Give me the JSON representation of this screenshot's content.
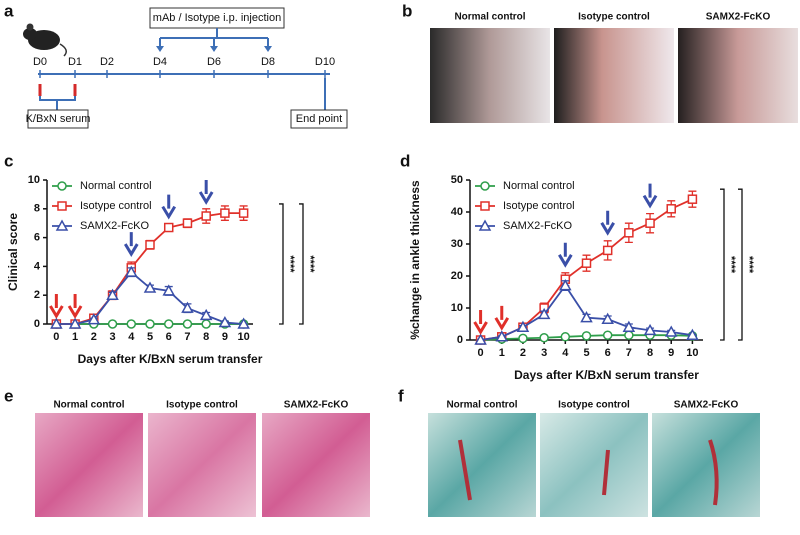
{
  "panel_labels": [
    "a",
    "b",
    "c",
    "d",
    "e",
    "f"
  ],
  "timeline": {
    "days": [
      "D0",
      "D1",
      "D2",
      "D4",
      "D6",
      "D8",
      "D10"
    ],
    "injection": "mAb / Isotype i.p. injection",
    "serum": "K/BxN serum",
    "end": "End point"
  },
  "photos_b": [
    "Normal control",
    "Isotype control",
    "SAMX2-FcKO"
  ],
  "histology_e": [
    "Normal control",
    "Isotype control",
    "SAMX2-FcKO"
  ],
  "histology_f": [
    "Normal control",
    "Isotype control",
    "SAMX2-FcKO"
  ],
  "chart_data": [
    {
      "type": "line",
      "x_label": "Days after K/BxN serum transfer",
      "y_label": "Clinical score",
      "x": [
        0,
        1,
        2,
        3,
        4,
        5,
        6,
        7,
        8,
        9,
        10
      ],
      "xlim": [
        -0.5,
        10.5
      ],
      "xticks": [
        0,
        1,
        2,
        3,
        4,
        5,
        6,
        7,
        8,
        9,
        10
      ],
      "ylim": [
        0,
        10
      ],
      "yticks": [
        0,
        2,
        4,
        6,
        8,
        10
      ],
      "series": [
        {
          "name": "Normal control",
          "color": "#2e9e4a",
          "marker": "circle",
          "values": [
            0,
            0,
            0,
            0,
            0,
            0,
            0,
            0,
            0,
            0,
            0
          ],
          "errors": [
            0,
            0,
            0,
            0,
            0,
            0,
            0,
            0,
            0,
            0,
            0
          ]
        },
        {
          "name": "Isotype control",
          "color": "#e0302a",
          "marker": "square",
          "values": [
            0,
            0,
            0.4,
            2,
            3.9,
            5.5,
            6.7,
            7,
            7.5,
            7.7,
            7.7
          ],
          "errors": [
            0,
            0,
            0.2,
            0.3,
            0.4,
            0.3,
            0.2,
            0.3,
            0.5,
            0.5,
            0.5
          ]
        },
        {
          "name": "SAMX2-FcKO",
          "color": "#3a4fa8",
          "marker": "triangle",
          "values": [
            0,
            0,
            0.3,
            2,
            3.6,
            2.5,
            2.3,
            1.1,
            0.6,
            0.1,
            0
          ],
          "errors": [
            0,
            0,
            0.1,
            0.2,
            0.3,
            0.2,
            0.3,
            0.3,
            0.2,
            0.1,
            0
          ]
        }
      ],
      "arrows": [
        {
          "x": 0,
          "color": "#e0302a"
        },
        {
          "x": 1,
          "color": "#e0302a"
        },
        {
          "x": 4,
          "color": "#3a4fa8"
        },
        {
          "x": 6,
          "color": "#3a4fa8"
        },
        {
          "x": 8,
          "color": "#3a4fa8"
        }
      ],
      "significance": [
        "****",
        "****"
      ]
    },
    {
      "type": "line",
      "x_label": "Days after K/BxN serum transfer",
      "y_label": "%change in ankle thickness",
      "x": [
        0,
        1,
        2,
        3,
        4,
        5,
        6,
        7,
        8,
        9,
        10
      ],
      "xlim": [
        -0.5,
        10.5
      ],
      "xticks": [
        0,
        1,
        2,
        3,
        4,
        5,
        6,
        7,
        8,
        9,
        10
      ],
      "ylim": [
        0,
        50
      ],
      "yticks": [
        0,
        10,
        20,
        30,
        40,
        50
      ],
      "series": [
        {
          "name": "Normal control",
          "color": "#2e9e4a",
          "marker": "circle",
          "values": [
            0,
            0.3,
            0.5,
            0.7,
            1,
            1.3,
            1.5,
            1.5,
            1.5,
            1.5,
            1.3
          ],
          "errors": [
            0,
            0.1,
            0.1,
            0.2,
            0.2,
            0.2,
            0.2,
            0.2,
            0.2,
            0.2,
            0.2
          ]
        },
        {
          "name": "Isotype control",
          "color": "#e0302a",
          "marker": "square",
          "values": [
            0,
            1,
            4,
            10,
            19,
            24,
            28,
            33.5,
            36.5,
            41,
            44
          ],
          "errors": [
            0,
            0.3,
            0.5,
            1.5,
            2,
            2.5,
            3,
            3,
            3,
            2.5,
            2.5
          ]
        },
        {
          "name": "SAMX2-FcKO",
          "color": "#3a4fa8",
          "marker": "triangle",
          "values": [
            0,
            1,
            4,
            8,
            17,
            7,
            6.5,
            4,
            3,
            2.5,
            1.5
          ],
          "errors": [
            0,
            0.3,
            0.5,
            1,
            1.5,
            1,
            1,
            1,
            0.7,
            0.5,
            0.3
          ]
        }
      ],
      "arrows": [
        {
          "x": 0,
          "color": "#e0302a"
        },
        {
          "x": 1,
          "color": "#e0302a"
        },
        {
          "x": 4,
          "color": "#3a4fa8"
        },
        {
          "x": 6,
          "color": "#3a4fa8"
        },
        {
          "x": 8,
          "color": "#3a4fa8"
        }
      ],
      "significance": [
        "****",
        "****"
      ]
    }
  ]
}
